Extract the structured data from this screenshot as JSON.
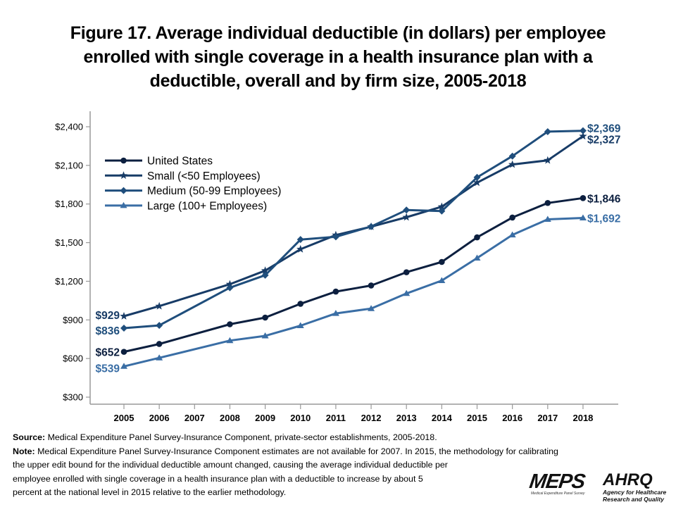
{
  "title_lines": [
    "Figure 17. Average individual deductible (in dollars) per employee",
    "enrolled with single coverage in a health insurance plan with a",
    "deductible, overall and by firm size, 2005-2018"
  ],
  "chart_data": {
    "type": "line",
    "title": "Figure 17. Average individual deductible (in dollars) per employee enrolled with single coverage in a health insurance plan with a deductible, overall and by firm size, 2005-2018",
    "xlabel": "",
    "ylabel": "",
    "x": [
      "2005",
      "2006",
      "2007",
      "2008",
      "2009",
      "2010",
      "2011",
      "2012",
      "2013",
      "2014",
      "2015",
      "2016",
      "2017",
      "2018"
    ],
    "ylim": [
      300,
      2550
    ],
    "yticks": [
      300,
      600,
      900,
      1200,
      1500,
      1800,
      2100,
      2400
    ],
    "ytick_labels": [
      "$300",
      "$600",
      "$900",
      "$1,200",
      "$1,500",
      "$1,800",
      "$2,100",
      "$2,400"
    ],
    "grid": false,
    "legend_position": "top-left",
    "series": [
      {
        "name": "United States",
        "marker": "circle",
        "color": "#0c1f3f",
        "values": [
          652,
          713,
          null,
          866,
          918,
          1025,
          1120,
          1167,
          1270,
          1350,
          1541,
          1695,
          1808,
          1846
        ],
        "start_label": "$652",
        "end_label": "$1,846"
      },
      {
        "name": "Small (<50 Employees)",
        "marker": "star",
        "color": "#173b66",
        "values": [
          929,
          1007,
          null,
          1177,
          1283,
          1449,
          1559,
          1624,
          1697,
          1779,
          1966,
          2107,
          2139,
          2327
        ],
        "start_label": "$929",
        "end_label": "$2,327"
      },
      {
        "name": "Medium (50-99 Employees)",
        "marker": "diamond",
        "color": "#1f4e7c",
        "values": [
          836,
          857,
          null,
          1150,
          1247,
          1524,
          1545,
          1625,
          1753,
          1745,
          2007,
          2172,
          2362,
          2369
        ],
        "start_label": "$836",
        "end_label": "$2,369"
      },
      {
        "name": "Large (100+ Employees)",
        "marker": "triangle",
        "color": "#3a6ea5",
        "values": [
          539,
          605,
          null,
          739,
          776,
          855,
          950,
          988,
          1105,
          1205,
          1380,
          1560,
          1681,
          1692
        ],
        "start_label": "$539",
        "end_label": "$1,692"
      }
    ]
  },
  "notes": {
    "source_label": "Source:",
    "source_text": " Medical Expenditure Panel Survey-Insurance Component, private-sector establishments, 2005-2018.",
    "note_label": "Note:",
    "note_line1": " Medical Expenditure Panel Survey-Insurance Component estimates are not available for 2007. In 2015, the methodology for calibrating",
    "note_line2": "the upper edit bound for the individual deductible amount changed, causing the average individual deductible per",
    "note_line3": "employee enrolled with single coverage in a health insurance plan with a deductible to increase by about 5",
    "note_line4": "percent at the national level in 2015 relative to the earlier methodology."
  },
  "logos": {
    "meps": "MEPS",
    "meps_sub": "Medical Expenditure Panel Survey",
    "ahrq": "AHRQ",
    "ahrq_sub1": "Agency for Healthcare",
    "ahrq_sub2": "Research and Quality"
  }
}
